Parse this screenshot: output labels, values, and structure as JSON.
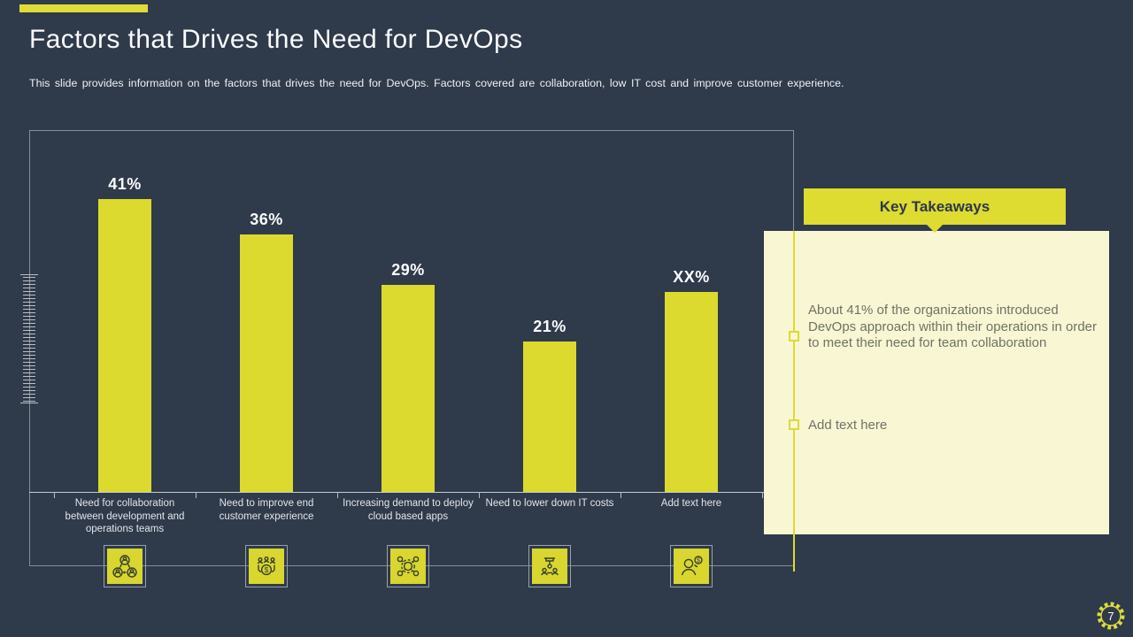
{
  "slide": {
    "title": "Factors that Drives the Need for DevOps",
    "subtitle": "This slide provides information on the factors that drives the need for DevOps. Factors covered are collaboration, low IT cost and improve customer experience.",
    "page_number": "7",
    "accent_color": "#dfdc3a",
    "background_color": "#2f3a4b"
  },
  "chart_data": {
    "type": "bar",
    "title": "",
    "xlabel": "",
    "ylabel": "",
    "categories": [
      "Need for collaboration between development and operations teams",
      "Need to improve end customer experience",
      "Increasing demand to deploy cloud based apps",
      "Need to lower down IT costs",
      "Add text here"
    ],
    "values": [
      41,
      36,
      29,
      21,
      null
    ],
    "value_labels": [
      "41%",
      "36%",
      "29%",
      "21%",
      "XX%"
    ],
    "xx_bar_estimated_value": 28,
    "ylim": [
      0,
      45
    ],
    "grid": false,
    "legend": false,
    "bar_color": "#dcd92f",
    "value_label_color": "#fcfcfc",
    "icons": [
      "collaboration-network",
      "team-customer-money",
      "gear-integration-network",
      "crane-lowering-costs",
      "person-with-coin"
    ]
  },
  "takeaways": {
    "header": "Key Takeaways",
    "items": [
      "About 41% of the organizations introduced DevOps approach within their operations in order to meet their need for team collaboration",
      "Add text here"
    ],
    "panel_color": "#f9f6d3",
    "header_bg": "#dedb31",
    "text_color": "#6e7366"
  }
}
